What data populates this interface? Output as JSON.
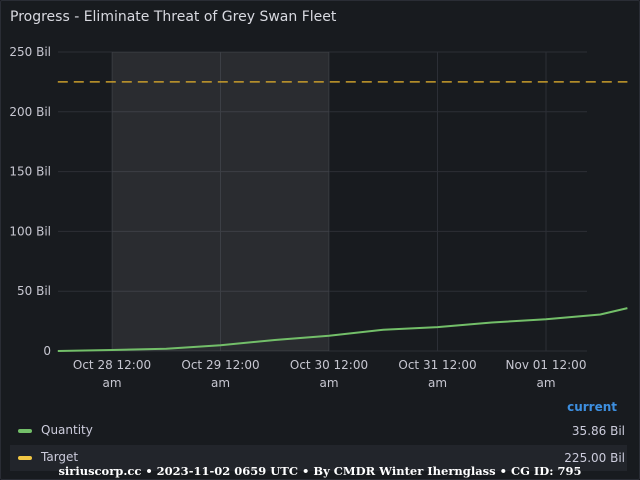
{
  "panel": {
    "title": "Progress - Eliminate Threat of Grey Swan Fleet"
  },
  "chart_data": {
    "type": "line",
    "y_ticks": [
      "250 Bil",
      "200 Bil",
      "150 Bil",
      "100 Bil",
      "50 Bil",
      "0"
    ],
    "ylim": [
      0,
      250
    ],
    "y_unit": "Bil",
    "x_ticks": [
      [
        "Oct 28 12:00",
        "am"
      ],
      [
        "Oct 29 12:00",
        "am"
      ],
      [
        "Oct 30 12:00",
        "am"
      ],
      [
        "Oct 31 12:00",
        "am"
      ],
      [
        "Nov 01 12:00",
        "am"
      ]
    ],
    "grid": true,
    "shaded_x_range": [
      "Oct 28",
      "Oct 30"
    ],
    "series": [
      {
        "name": "Quantity",
        "color": "#73bf69",
        "style": "solid",
        "x": [
          "Oct 27 12:00",
          "Oct 28 00:00",
          "Oct 28 12:00",
          "Oct 29 00:00",
          "Oct 29 12:00",
          "Oct 30 00:00",
          "Oct 30 12:00",
          "Oct 31 00:00",
          "Oct 31 12:00",
          "Nov 01 00:00",
          "Nov 01 12:00",
          "Nov 01 18:00"
        ],
        "values": [
          0,
          0.8,
          1.8,
          4.8,
          9.2,
          12.8,
          17.8,
          20.0,
          23.8,
          26.6,
          30.5,
          35.86
        ]
      },
      {
        "name": "Target",
        "color": "#c79c2b",
        "style": "dashed",
        "x": [
          "Oct 27 12:00",
          "Nov 01 18:00"
        ],
        "values": [
          225,
          225
        ]
      }
    ]
  },
  "legend": {
    "header": "current",
    "items": [
      {
        "name": "Quantity",
        "value": "35.86 Bil",
        "color": "#73bf69"
      },
      {
        "name": "Target",
        "value": "225.00 Bil",
        "color": "#f2c744"
      }
    ]
  },
  "footer": "siriuscorp.cc • 2023-11-02 0659 UTC • By CMDR Winter Ihernglass • CG ID: 795"
}
